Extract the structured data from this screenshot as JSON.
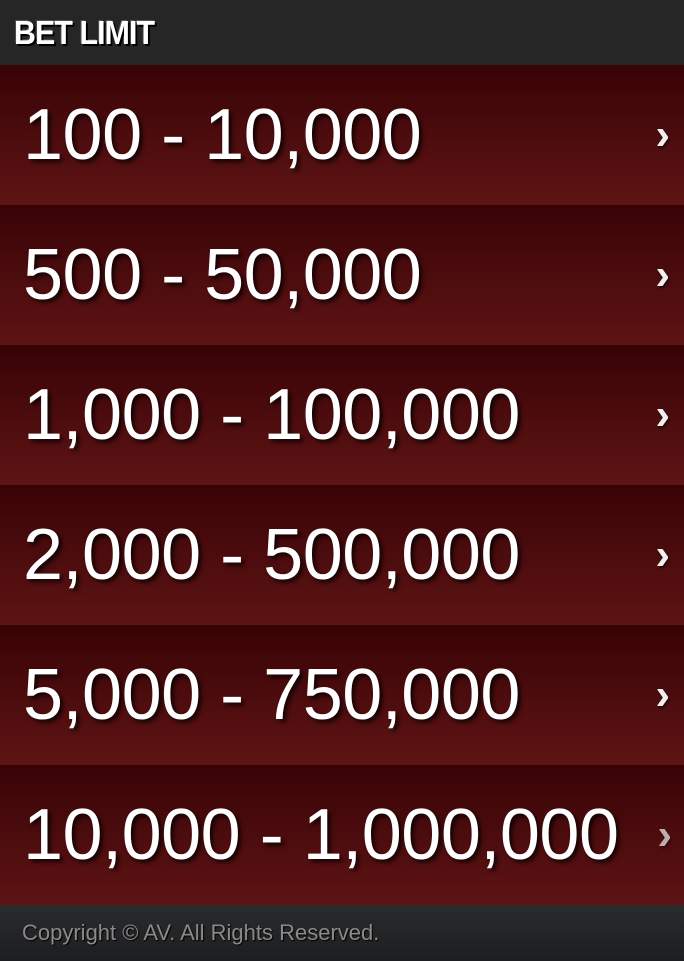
{
  "header": {
    "title": "BET LIMIT"
  },
  "limits": [
    {
      "label": "100 - 10,000"
    },
    {
      "label": "500 - 50,000"
    },
    {
      "label": "1,000 - 100,000"
    },
    {
      "label": "2,000 - 500,000"
    },
    {
      "label": "5,000 - 750,000"
    },
    {
      "label": "10,000 - 1,000,000"
    }
  ],
  "chevron_glyph": "›",
  "footer": {
    "copyright": "Copyright © AV. All Rights Reserved."
  },
  "colors": {
    "header_bg": "#262626",
    "row_top": "#380305",
    "row_bottom": "#5e1414",
    "text": "#ffffff"
  }
}
